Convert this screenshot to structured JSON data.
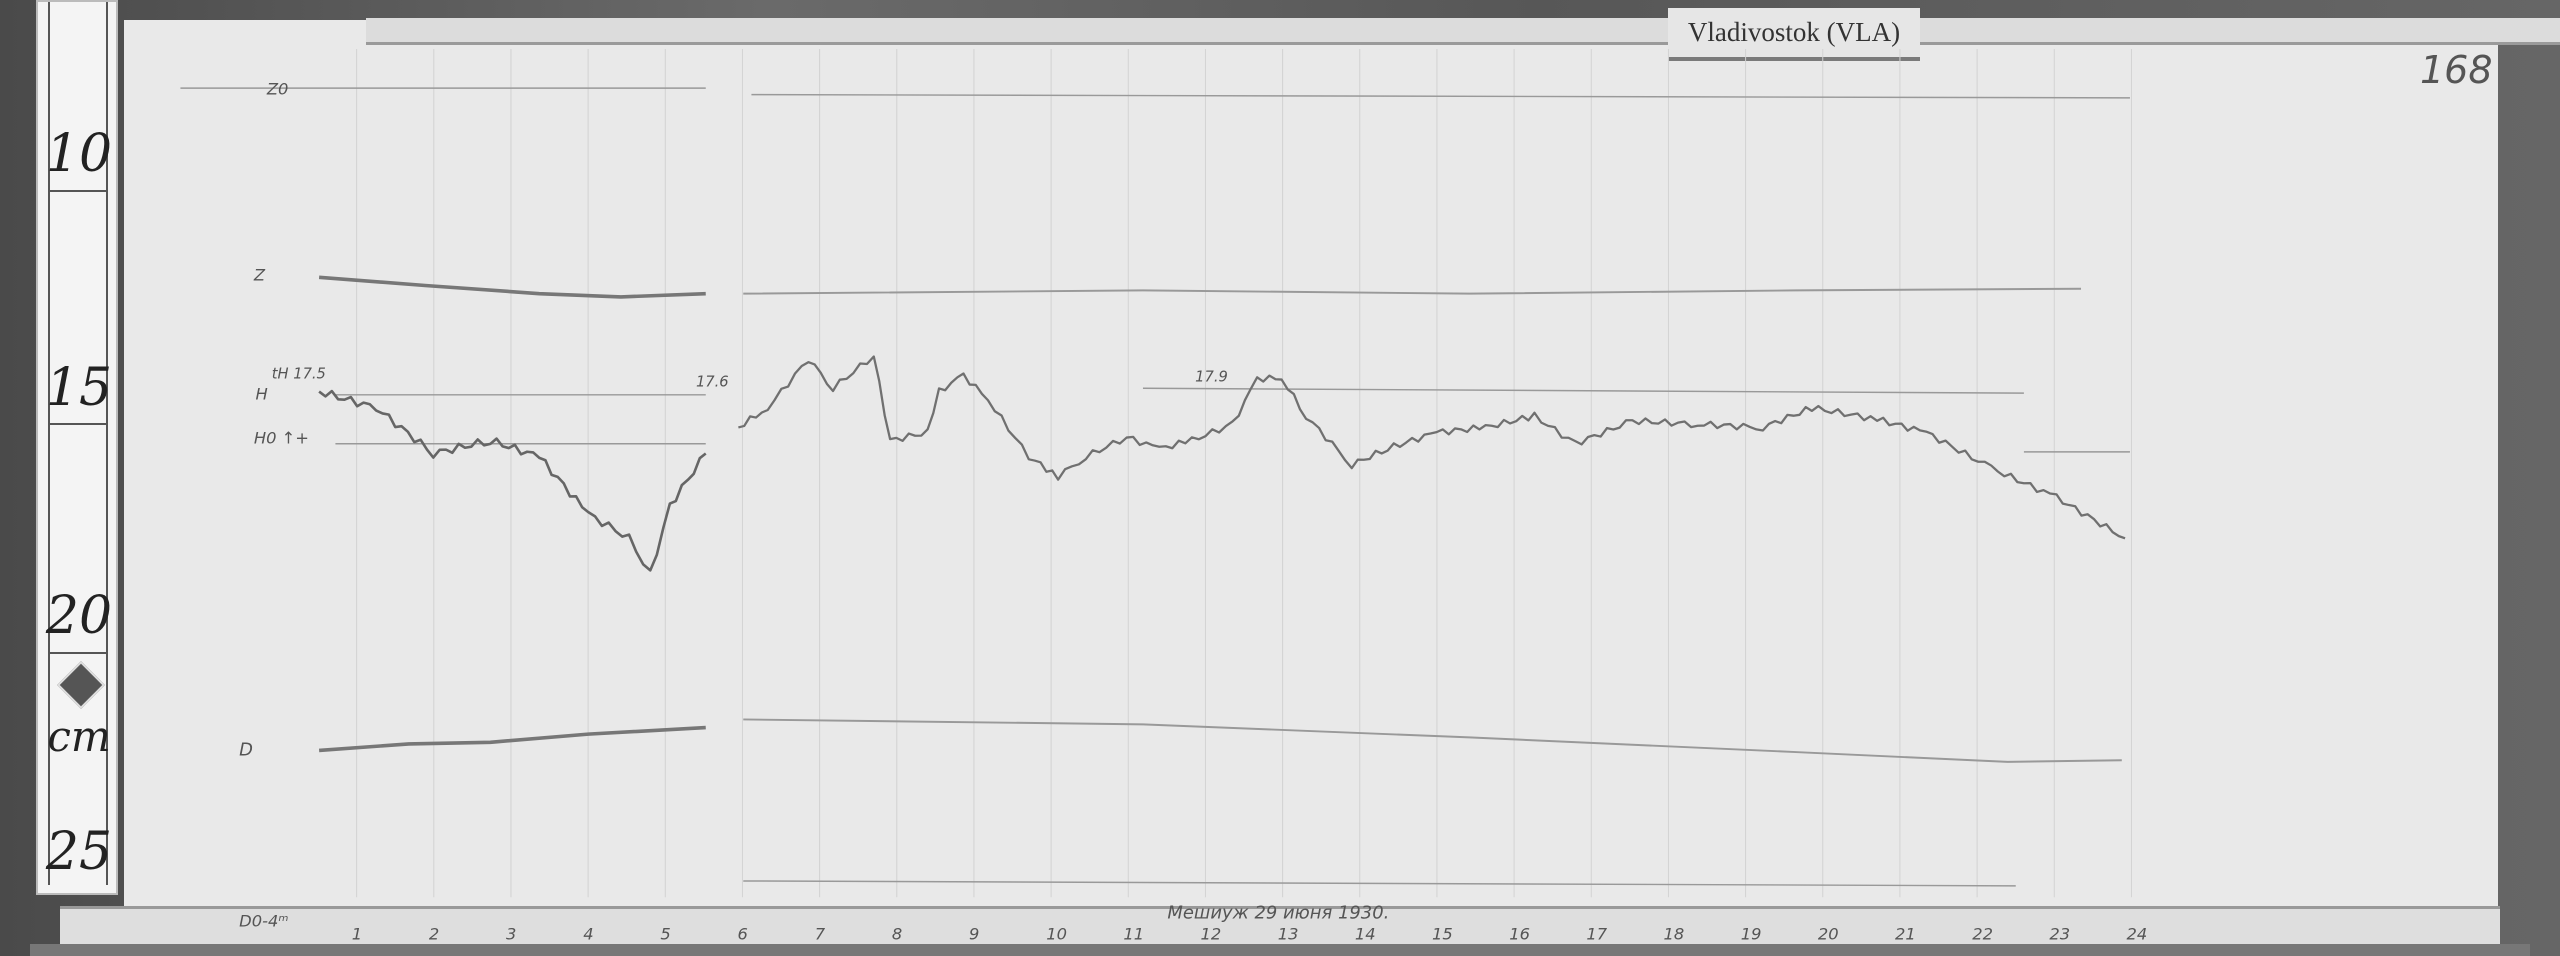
{
  "header": {
    "station_label": "Vladivostok (VLA)",
    "page_number": "168"
  },
  "ruler": {
    "marks": [
      "10",
      "15",
      "20",
      "25"
    ],
    "unit": "cm"
  },
  "traces": {
    "z0_label": "Z0",
    "z_label": "Z",
    "h_temp_label": "tH 17.5",
    "h_label": "H",
    "h0_label": "H0 ↑+",
    "h_temp_mid_1": "17.6",
    "h_temp_mid_2": "17.9",
    "d_label": "D"
  },
  "time_axis": {
    "start_label": "D0-4ᵐ",
    "hours": [
      "1",
      "2",
      "3",
      "4",
      "5",
      "6",
      "7",
      "8",
      "9",
      "10",
      "11",
      "12",
      "13",
      "14",
      "15",
      "16",
      "17",
      "18",
      "19",
      "20",
      "21",
      "22",
      "23",
      "24"
    ]
  },
  "footer_note": "Мешиуж 29 июня 1930.",
  "colors": {
    "paper": "#e9e9e9",
    "trace": "#666666",
    "background": "#5a5a5a"
  }
}
